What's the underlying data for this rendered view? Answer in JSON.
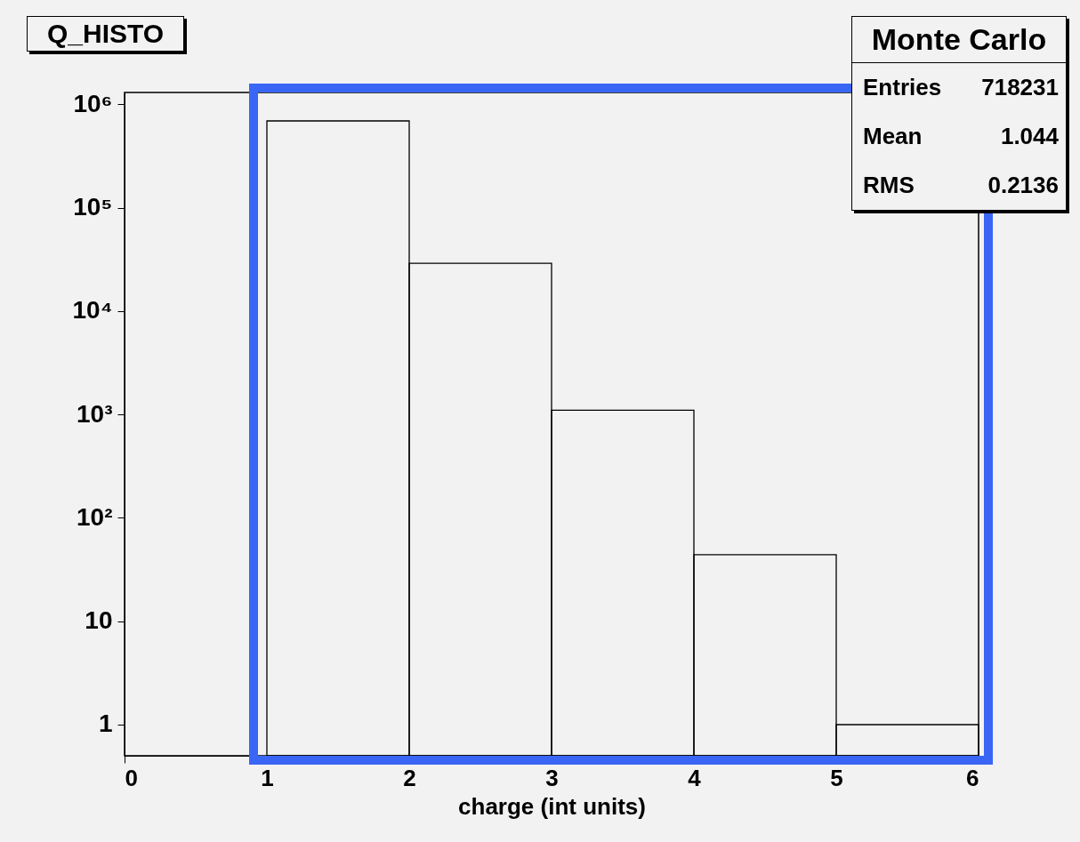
{
  "chart_data": {
    "type": "histogram",
    "title": "Q_HISTO",
    "xlabel": "charge (int units)",
    "bins": [
      1,
      2,
      3,
      4,
      5,
      6
    ],
    "values": [
      690000,
      29000,
      1100,
      44,
      1
    ],
    "color": "#000000",
    "xlim": [
      0,
      6
    ],
    "xticks": [
      0,
      1,
      2,
      3,
      4,
      5,
      6
    ],
    "ylim": [
      0.5,
      1300000
    ],
    "yticks": [
      1,
      10,
      {
        "value": 100,
        "label": "10²"
      },
      {
        "value": 1000,
        "label": "10³"
      },
      {
        "value": 10000,
        "label": "10⁴"
      },
      {
        "value": 100000,
        "label": "10⁵"
      },
      {
        "value": 1000000,
        "label": "10⁶"
      }
    ],
    "log": "y",
    "grid": false,
    "annotations": [
      "Monte Carlo",
      "Entries",
      "718231",
      "Mean",
      "1.044",
      "RMS",
      "0.2136"
    ]
  }
}
